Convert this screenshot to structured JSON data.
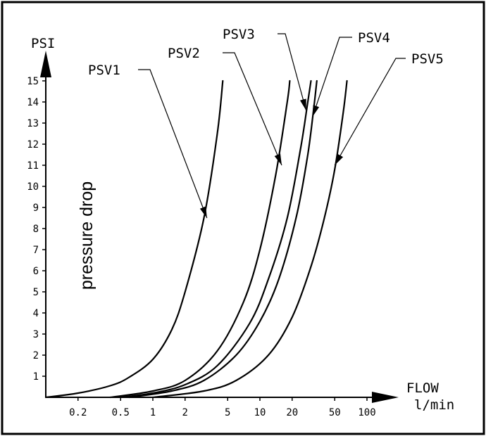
{
  "chart_data": {
    "type": "line",
    "title": "",
    "y_unit": "PSI",
    "ylabel": "pressure drop",
    "xlabel": "FLOW",
    "x_unit": "l/min",
    "x_scale": "log",
    "x_ticks": [
      0.2,
      0.5,
      1,
      2,
      5,
      10,
      20,
      50,
      100
    ],
    "x_tick_labels": [
      "0.2",
      "0.5",
      "1",
      "2",
      "5",
      "10",
      "20",
      "50",
      "100"
    ],
    "y_ticks": [
      1,
      2,
      3,
      4,
      5,
      6,
      7,
      8,
      9,
      10,
      11,
      12,
      13,
      14,
      15
    ],
    "y_tick_labels": [
      "1",
      "2",
      "3",
      "4",
      "5",
      "6",
      "7",
      "8",
      "9",
      "10",
      "11",
      "12",
      "13",
      "14",
      "15"
    ],
    "xlim": [
      0.1,
      100
    ],
    "ylim": [
      0,
      15
    ],
    "grid": false,
    "legend": "none",
    "series": [
      {
        "name": "PSV1",
        "x": [
          0.1,
          0.2,
          0.4,
          0.6,
          1,
          1.5,
          2,
          3,
          4,
          4.5
        ],
        "y": [
          0,
          0.2,
          0.55,
          0.95,
          1.8,
          3.2,
          5,
          8.5,
          12.5,
          15
        ]
      },
      {
        "name": "PSV2",
        "x": [
          0.4,
          1,
          2,
          4,
          7,
          10,
          14,
          18,
          19
        ],
        "y": [
          0,
          0.3,
          0.8,
          2.2,
          4.5,
          7,
          10.5,
          14,
          15
        ]
      },
      {
        "name": "PSV3",
        "x": [
          0.5,
          1,
          2,
          4,
          8,
          12,
          18,
          24,
          28,
          30
        ],
        "y": [
          0,
          0.2,
          0.6,
          1.5,
          3.5,
          5.6,
          8.5,
          11.8,
          14,
          15
        ]
      },
      {
        "name": "PSV4",
        "x": [
          0.6,
          1.5,
          3,
          6,
          10,
          15,
          22,
          28,
          32,
          34
        ],
        "y": [
          0,
          0.3,
          0.8,
          2,
          3.6,
          5.6,
          8.6,
          11.5,
          13.8,
          15
        ]
      },
      {
        "name": "PSV5",
        "x": [
          1,
          3,
          6,
          12,
          20,
          30,
          40,
          50,
          60,
          65
        ],
        "y": [
          0,
          0.3,
          0.8,
          2,
          3.8,
          6.2,
          8.5,
          10.8,
          13.5,
          15
        ]
      }
    ],
    "annotations": [
      {
        "label": "PSV1",
        "series": "PSV1",
        "point": [
          3.2,
          8.5
        ]
      },
      {
        "label": "PSV2",
        "series": "PSV2",
        "point": [
          16,
          11
        ]
      },
      {
        "label": "PSV3",
        "series": "PSV3",
        "point": [
          27,
          13.6
        ]
      },
      {
        "label": "PSV4",
        "series": "PSV4",
        "point": [
          31,
          13.3
        ]
      },
      {
        "label": "PSV5",
        "series": "PSV5",
        "point": [
          50,
          11
        ]
      }
    ]
  }
}
